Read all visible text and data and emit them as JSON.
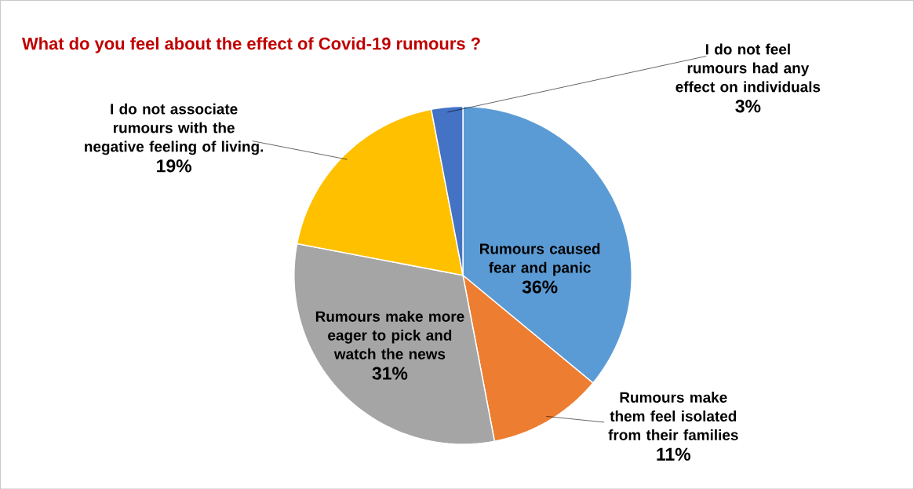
{
  "chart_data": {
    "type": "pie",
    "title": "What do you feel about the effect of Covid-19  rumours ?",
    "categories": [
      "Rumours caused fear and panic",
      "Rumours make them feel isolated from their families",
      "Rumours make more eager to pick and watch the news",
      "I do not associate rumours with the negative feeling of living.",
      "I do not feel rumours had any effect on individuals"
    ],
    "values": [
      36,
      11,
      31,
      19,
      3
    ],
    "value_labels": [
      "36%",
      "11%",
      "31%",
      "19%",
      "3%"
    ],
    "colors": [
      "#5b9bd5",
      "#ed7d31",
      "#a5a5a5",
      "#ffc000",
      "#4472c4"
    ]
  }
}
